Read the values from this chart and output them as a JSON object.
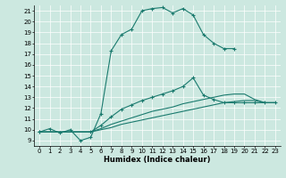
{
  "xlabel": "Humidex (Indice chaleur)",
  "background_color": "#cce8e0",
  "line_color": "#1a7a6e",
  "xlim": [
    -0.5,
    23.5
  ],
  "ylim": [
    8.5,
    21.5
  ],
  "xticks": [
    0,
    1,
    2,
    3,
    4,
    5,
    6,
    7,
    8,
    9,
    10,
    11,
    12,
    13,
    14,
    15,
    16,
    17,
    18,
    19,
    20,
    21,
    22,
    23
  ],
  "yticks": [
    9,
    10,
    11,
    12,
    13,
    14,
    15,
    16,
    17,
    18,
    19,
    20,
    21
  ],
  "line1_x": [
    0,
    1,
    2,
    3,
    4,
    5,
    6,
    7,
    8,
    9,
    10,
    11,
    12,
    13,
    14,
    15,
    16,
    17,
    18,
    19
  ],
  "line1_y": [
    9.8,
    10.1,
    9.7,
    10.0,
    9.0,
    9.3,
    11.5,
    17.3,
    18.8,
    19.3,
    21.0,
    21.2,
    21.3,
    20.8,
    21.2,
    20.6,
    18.8,
    18.0,
    17.5,
    17.5
  ],
  "line2_x": [
    0,
    5,
    6,
    7,
    8,
    9,
    10,
    11,
    12,
    13,
    14,
    15,
    16,
    17,
    18,
    19,
    20,
    21,
    22,
    23
  ],
  "line2_y": [
    9.8,
    9.8,
    10.4,
    11.2,
    11.9,
    12.3,
    12.7,
    13.0,
    13.3,
    13.6,
    14.0,
    14.8,
    13.2,
    12.8,
    12.5,
    12.5,
    12.5,
    12.5,
    12.5,
    12.5
  ],
  "line3_x": [
    0,
    5,
    6,
    7,
    8,
    9,
    10,
    11,
    12,
    13,
    14,
    15,
    16,
    17,
    18,
    19,
    20,
    21,
    22,
    23
  ],
  "line3_y": [
    9.8,
    9.8,
    10.1,
    10.5,
    10.8,
    11.1,
    11.4,
    11.7,
    11.9,
    12.1,
    12.4,
    12.6,
    12.8,
    13.0,
    13.2,
    13.3,
    13.3,
    12.8,
    12.5,
    12.5
  ],
  "line4_x": [
    0,
    5,
    6,
    7,
    8,
    9,
    10,
    11,
    12,
    13,
    14,
    15,
    16,
    17,
    18,
    19,
    20,
    21,
    22,
    23
  ],
  "line4_y": [
    9.8,
    9.8,
    10.0,
    10.2,
    10.5,
    10.7,
    10.9,
    11.1,
    11.3,
    11.5,
    11.7,
    11.9,
    12.1,
    12.3,
    12.5,
    12.6,
    12.7,
    12.7,
    12.5,
    12.5
  ]
}
